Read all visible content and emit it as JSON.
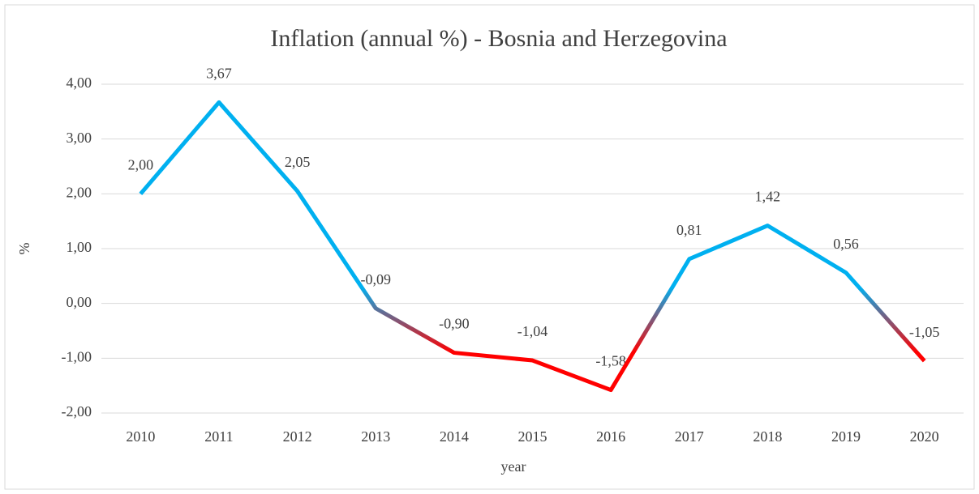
{
  "chart_data": {
    "type": "line",
    "title": "Inflation (annual %) - Bosnia and Herzegovina",
    "x_label": "year",
    "y_label": "%",
    "categories": [
      "2010",
      "2011",
      "2012",
      "2013",
      "2014",
      "2015",
      "2016",
      "2017",
      "2018",
      "2019",
      "2020"
    ],
    "series": [
      {
        "name": "Inflation",
        "color": "#00b0f0",
        "negative_color": "#ff0000",
        "values": [
          2.0,
          3.67,
          2.05,
          -0.09,
          -0.9,
          -1.04,
          -1.58,
          0.81,
          1.42,
          0.56,
          -1.05
        ],
        "value_labels": [
          "2,00",
          "3,67",
          "2,05",
          "-0,09",
          "-0,90",
          "-1,04",
          "-1,58",
          "0,81",
          "1,42",
          "0,56",
          "-1,05"
        ]
      }
    ],
    "ylim": [
      -2,
      4
    ],
    "yticks": [
      {
        "value": -2,
        "label": "-2,00"
      },
      {
        "value": -1,
        "label": "-1,00"
      },
      {
        "value": 0,
        "label": "0,00"
      },
      {
        "value": 1,
        "label": "1,00"
      },
      {
        "value": 2,
        "label": "2,00"
      },
      {
        "value": 3,
        "label": "3,00"
      },
      {
        "value": 4,
        "label": "4,00"
      }
    ],
    "grid": true
  }
}
